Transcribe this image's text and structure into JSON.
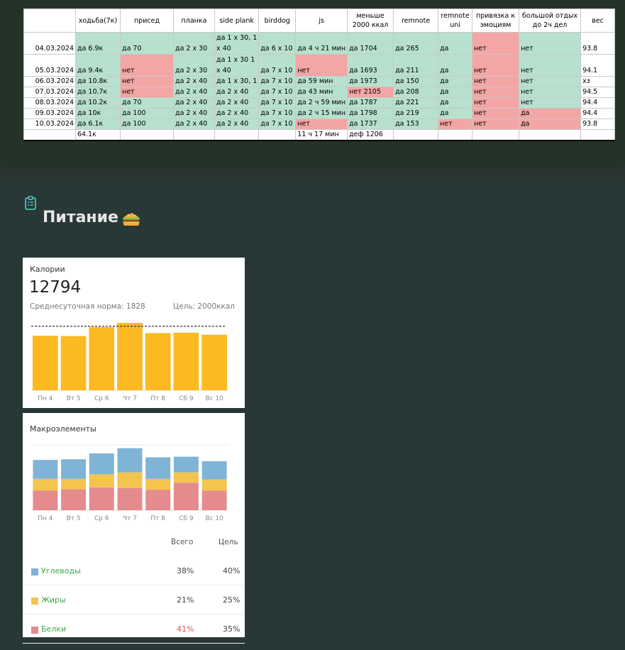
{
  "habit_table": {
    "headers": [
      "",
      "ходьба(7к)",
      "присед",
      "планка",
      "side plank",
      "birddog",
      "js",
      "меньше 2000 ккал",
      "remnote",
      "remnote uni",
      "привязка к эмоциям",
      "большой отдых до 2ч дел",
      "вес"
    ],
    "rows": [
      {
        "tall": true,
        "cells": [
          {
            "t": "04.03.2024",
            "c": ""
          },
          {
            "t": "да 6.9к",
            "c": "g"
          },
          {
            "t": "да 70",
            "c": "g"
          },
          {
            "t": "да 2 х 30",
            "c": "g"
          },
          {
            "t": "да 1 х 30, 1 х 40",
            "c": "g"
          },
          {
            "t": "да 6 х 10",
            "c": "g"
          },
          {
            "t": "да 4 ч 21 мин",
            "c": "g"
          },
          {
            "t": "да 1704",
            "c": "g"
          },
          {
            "t": "да 265",
            "c": "g"
          },
          {
            "t": "да",
            "c": "g"
          },
          {
            "t": "нет",
            "c": "r"
          },
          {
            "t": "нет",
            "c": "g"
          },
          {
            "t": "93.8",
            "c": ""
          }
        ]
      },
      {
        "tall": true,
        "cells": [
          {
            "t": "05.03.2024",
            "c": ""
          },
          {
            "t": "да 9.4к",
            "c": "g"
          },
          {
            "t": "нет",
            "c": "r"
          },
          {
            "t": "да 2 х 30",
            "c": "g"
          },
          {
            "t": "да 1 х 30 1 х 40",
            "c": "g"
          },
          {
            "t": "да 7 х 10",
            "c": "g"
          },
          {
            "t": "нет",
            "c": "r"
          },
          {
            "t": "да 1693",
            "c": "g"
          },
          {
            "t": "да 211",
            "c": "g"
          },
          {
            "t": "да",
            "c": "g"
          },
          {
            "t": "нет",
            "c": "r"
          },
          {
            "t": "нет",
            "c": "g"
          },
          {
            "t": "94.1",
            "c": ""
          }
        ]
      },
      {
        "tall": false,
        "cells": [
          {
            "t": "06.03.2024",
            "c": ""
          },
          {
            "t": "да 10.8к",
            "c": "g"
          },
          {
            "t": "нет",
            "c": "r"
          },
          {
            "t": "да 2 х 40",
            "c": "g"
          },
          {
            "t": "да 1 х 30, 1",
            "c": "g"
          },
          {
            "t": "да 7 х 10",
            "c": "g"
          },
          {
            "t": "да 59 мин",
            "c": "g"
          },
          {
            "t": "да 1973",
            "c": "g"
          },
          {
            "t": "да 150",
            "c": "g"
          },
          {
            "t": "да",
            "c": "g"
          },
          {
            "t": "нет",
            "c": "r"
          },
          {
            "t": "нет",
            "c": "g"
          },
          {
            "t": "хз",
            "c": ""
          }
        ]
      },
      {
        "tall": false,
        "cells": [
          {
            "t": "07.03.2024",
            "c": ""
          },
          {
            "t": "да 10.7к",
            "c": "g"
          },
          {
            "t": "нет",
            "c": "r"
          },
          {
            "t": "да 2 х 40",
            "c": "g"
          },
          {
            "t": "да 2 х 40",
            "c": "g"
          },
          {
            "t": "да 7 х 10",
            "c": "g"
          },
          {
            "t": "да 43 мин",
            "c": "g"
          },
          {
            "t": "нет 2105",
            "c": "r"
          },
          {
            "t": "да 208",
            "c": "g"
          },
          {
            "t": "да",
            "c": "g"
          },
          {
            "t": "нет",
            "c": "r"
          },
          {
            "t": "нет",
            "c": "g"
          },
          {
            "t": "94.5",
            "c": ""
          }
        ]
      },
      {
        "tall": false,
        "cells": [
          {
            "t": "08.03.2024",
            "c": ""
          },
          {
            "t": "да 10.2к",
            "c": "g"
          },
          {
            "t": "да 70",
            "c": "g"
          },
          {
            "t": "да 2 х 40",
            "c": "g"
          },
          {
            "t": "да 2 х 40",
            "c": "g"
          },
          {
            "t": "да 7 х 10",
            "c": "g"
          },
          {
            "t": "да 2 ч 59 мин",
            "c": "g"
          },
          {
            "t": "да 1787",
            "c": "g"
          },
          {
            "t": "да 221",
            "c": "g"
          },
          {
            "t": "да",
            "c": "g"
          },
          {
            "t": "нет",
            "c": "r"
          },
          {
            "t": "нет",
            "c": "g"
          },
          {
            "t": "94.4",
            "c": ""
          }
        ]
      },
      {
        "tall": false,
        "cells": [
          {
            "t": "09.03.2024",
            "c": ""
          },
          {
            "t": "да 10к",
            "c": "g"
          },
          {
            "t": "да 100",
            "c": "g"
          },
          {
            "t": "да 2 х 40",
            "c": "g"
          },
          {
            "t": "да 2 х 40",
            "c": "g"
          },
          {
            "t": "да 7 х 10",
            "c": "g"
          },
          {
            "t": "да 2 ч 15 мин",
            "c": "g"
          },
          {
            "t": "да 1798",
            "c": "g"
          },
          {
            "t": "да 219",
            "c": "g"
          },
          {
            "t": "да",
            "c": "g"
          },
          {
            "t": "нет",
            "c": "r"
          },
          {
            "t": "да",
            "c": "r"
          },
          {
            "t": "94.4",
            "c": ""
          }
        ]
      },
      {
        "tall": false,
        "cells": [
          {
            "t": "10.03.2024",
            "c": ""
          },
          {
            "t": "да 6.1к",
            "c": "g"
          },
          {
            "t": "да 100",
            "c": "g"
          },
          {
            "t": "да 2 х 40",
            "c": "g"
          },
          {
            "t": "да 2 х 40",
            "c": "g"
          },
          {
            "t": "да 7 х 10",
            "c": "g"
          },
          {
            "t": "нет",
            "c": "r"
          },
          {
            "t": "да 1737",
            "c": "g"
          },
          {
            "t": "да 153",
            "c": "g"
          },
          {
            "t": "нет",
            "c": "r"
          },
          {
            "t": "нет",
            "c": "r"
          },
          {
            "t": "да",
            "c": "r"
          },
          {
            "t": "93.8",
            "c": ""
          }
        ]
      }
    ],
    "summary": [
      "",
      "64.1к",
      "",
      "",
      "",
      "",
      "11 ч 17 мин",
      "деф 1206",
      "",
      "",
      "",
      "",
      ""
    ]
  },
  "nutrition": {
    "title": "Питание",
    "title_emoji": "burger-icon",
    "icon": "clipboard-icon"
  },
  "calories_panel": {
    "label": "Калории",
    "total": "12794",
    "avg_text": "Среднесуточная норма: 1828",
    "goal_text": "Цель: 2000ккал",
    "colors": {
      "bar": "#fbba22",
      "goal_line": "#333333"
    }
  },
  "macros_panel": {
    "label": "Макроэлементы",
    "col_total": "Всего",
    "col_goal": "Цель",
    "rows": [
      {
        "name": "Углеводы",
        "total": "38%",
        "goal": "40%",
        "color": "#7fb4d6",
        "total_color": "#444444"
      },
      {
        "name": "Жиры",
        "total": "21%",
        "goal": "25%",
        "color": "#f4c44e",
        "total_color": "#444444"
      },
      {
        "name": "Белки",
        "total": "41%",
        "goal": "35%",
        "color": "#e38b8d",
        "total_color": "#e0524c"
      }
    ]
  },
  "chart_data": [
    {
      "type": "bar",
      "title": "Калории",
      "categories": [
        "Пн 4",
        "Вт 5",
        "Ср 6",
        "Чт 7",
        "Пт 8",
        "Сб 9",
        "Вс 10"
      ],
      "values": [
        1704,
        1693,
        1973,
        2105,
        1787,
        1798,
        1737
      ],
      "goal_line": 2000,
      "ylim": [
        0,
        2150
      ],
      "grid": false,
      "legend": "none"
    },
    {
      "type": "bar",
      "stacked": true,
      "title": "Макроэлементы",
      "categories": [
        "Пн 4",
        "Вт 5",
        "Ср 6",
        "Чт 7",
        "Пт 8",
        "Сб 9",
        "Вс 10"
      ],
      "series": [
        {
          "name": "Белки",
          "color": "#e38b8d",
          "values": [
            30,
            32,
            35,
            34,
            31,
            42,
            30
          ]
        },
        {
          "name": "Жиры",
          "color": "#f4c44e",
          "values": [
            18,
            16,
            20,
            24,
            17,
            16,
            17
          ]
        },
        {
          "name": "Углеводы",
          "color": "#7fb4d6",
          "values": [
            29,
            30,
            32,
            37,
            33,
            24,
            28
          ]
        }
      ],
      "ylim": [
        0,
        100
      ],
      "grid": true,
      "legend": "none"
    }
  ]
}
